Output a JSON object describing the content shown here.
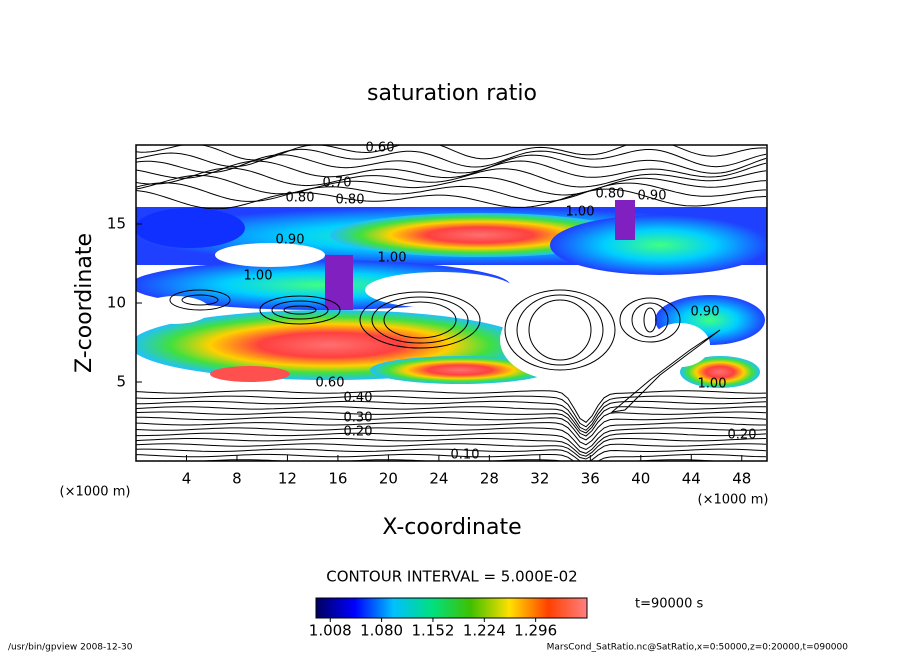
{
  "chart_data": {
    "type": "contour",
    "title": "saturation ratio",
    "xlabel": "X-coordinate",
    "ylabel": "Z-coordinate",
    "xunit": "(×1000 m)",
    "yunit": "(×1000 m)",
    "xlim": [
      0,
      50
    ],
    "xticks": [
      4,
      8,
      12,
      16,
      20,
      24,
      28,
      32,
      36,
      40,
      44,
      48
    ],
    "ylim": [
      0,
      20
    ],
    "yticks": [
      5,
      10,
      15
    ],
    "contour_interval": "CONTOUR INTERVAL = 5.000E-02",
    "contour_labels": [
      "0.60",
      "0.70",
      "0.80",
      "0.80",
      "0.90",
      "1.00",
      "1.00",
      "0.80",
      "0.90",
      "1.00",
      "0.90",
      "1.00",
      "0.60",
      "0.40",
      "0.30",
      "0.20",
      "0.10",
      "0.20"
    ],
    "colorbar_lim": [
      0.988,
      1.368
    ],
    "colorbar_ticks": [
      1.008,
      {
        "value": 1.08,
        "label": "1.080"
      },
      1.152,
      1.224,
      1.296
    ],
    "colorbar_colors": [
      "#000060",
      "#0000ff",
      "#00c0ff",
      "#00e080",
      "#40c000",
      "#ffe000",
      "#ff4000",
      "#ff8080"
    ],
    "time_label": "t=90000 s",
    "footer_left": "/usr/bin/gpview  2008-12-30",
    "footer_right": "MarsCond_SatRatio.nc@SatRatio,x=0:50000,z=0:20000,t=090000"
  }
}
